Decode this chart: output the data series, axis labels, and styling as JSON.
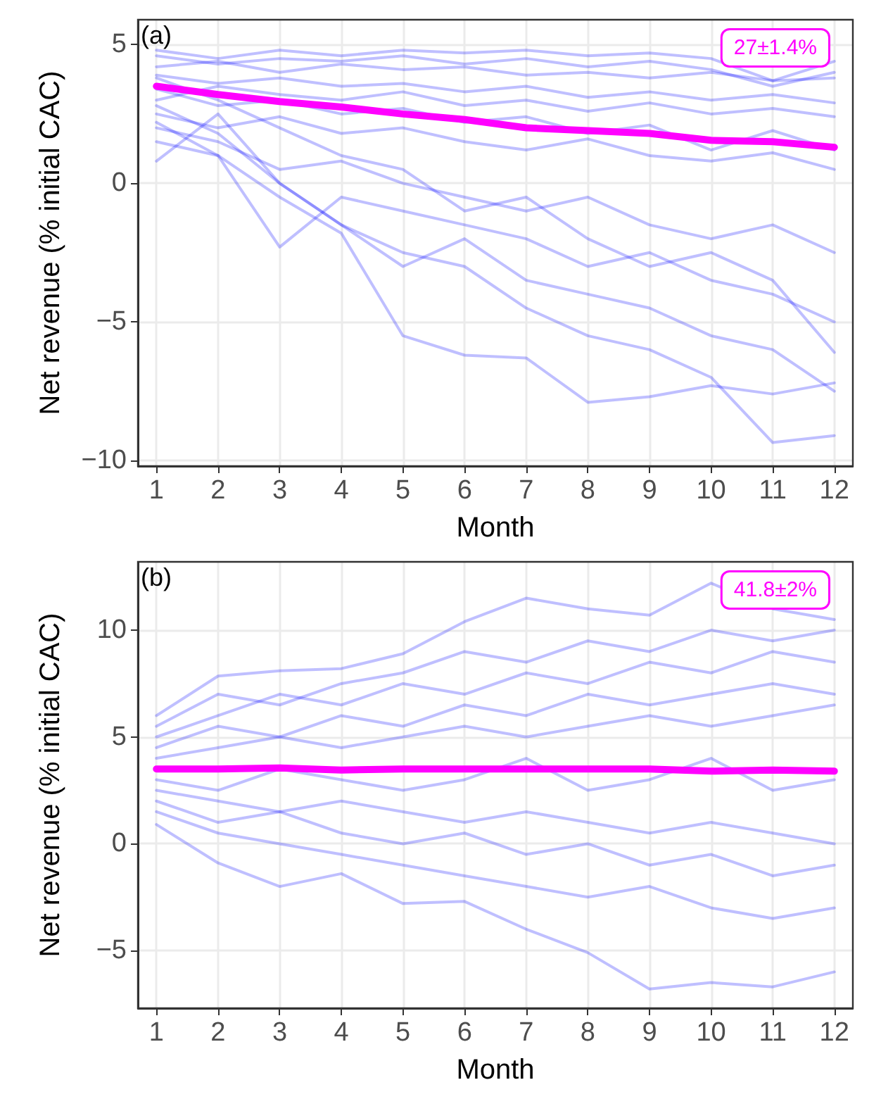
{
  "chart_data": [
    {
      "type": "line",
      "xlabel": "Month",
      "ylabel": "Net revenue (% initial CAC)",
      "annotations": [
        "(a)",
        "27±1.4%"
      ],
      "x": [
        1,
        2,
        3,
        4,
        5,
        6,
        7,
        8,
        9,
        10,
        11,
        12
      ],
      "xlim": [
        0.7,
        12.3
      ],
      "xticks": [
        1,
        2,
        3,
        4,
        5,
        6,
        7,
        8,
        9,
        10,
        11,
        12
      ],
      "ylim": [
        -10.2,
        5.9
      ],
      "yticks": [
        -10,
        -5,
        0,
        5
      ],
      "grid": true,
      "marker": "none",
      "line_style": "solid",
      "series": [
        {
          "color": "#0000ff",
          "values": [
            4.8,
            4.5,
            4.8,
            4.6,
            4.8,
            4.7,
            4.8,
            4.6,
            4.7,
            4.5,
            3.7,
            4.4
          ]
        },
        {
          "color": "#0000ff",
          "values": [
            4.6,
            4.3,
            4.5,
            4.4,
            4.6,
            4.3,
            4.5,
            4.2,
            4.4,
            4.1,
            3.5,
            4.0
          ]
        },
        {
          "color": "#0000ff",
          "values": [
            4.2,
            4.4,
            4.0,
            4.3,
            4.1,
            4.2,
            3.9,
            4.0,
            3.8,
            4.0,
            3.7,
            3.8
          ]
        },
        {
          "color": "#0000ff",
          "values": [
            3.9,
            3.6,
            3.8,
            3.5,
            3.6,
            3.3,
            3.5,
            3.1,
            3.3,
            3.0,
            3.2,
            2.9
          ]
        },
        {
          "color": "#0000ff",
          "values": [
            3.0,
            3.5,
            3.2,
            3.0,
            3.3,
            2.8,
            3.0,
            2.6,
            2.9,
            2.5,
            2.7,
            2.4
          ]
        },
        {
          "color": "#0000ff",
          "values": [
            3.4,
            2.8,
            3.0,
            2.5,
            2.7,
            2.2,
            2.4,
            1.8,
            2.1,
            1.2,
            1.9,
            1.2
          ]
        },
        {
          "color": "#0000ff",
          "values": [
            2.5,
            2.0,
            2.4,
            1.8,
            2.0,
            1.5,
            1.2,
            1.6,
            1.0,
            0.8,
            1.1,
            0.5
          ]
        },
        {
          "color": "#0000ff",
          "values": [
            2.0,
            1.5,
            0.5,
            0.8,
            0.0,
            -0.5,
            -1.0,
            -0.5,
            -1.5,
            -2.0,
            -1.5,
            -2.5
          ]
        },
        {
          "color": "#0000ff",
          "values": [
            3.8,
            3.0,
            2.0,
            1.0,
            0.5,
            -1.0,
            -0.5,
            -2.0,
            -3.0,
            -2.5,
            -3.5,
            -6.1
          ]
        },
        {
          "color": "#0000ff",
          "values": [
            1.5,
            1.0,
            -2.3,
            -0.5,
            -1.0,
            -1.5,
            -2.0,
            -3.0,
            -2.5,
            -3.5,
            -4.0,
            -5.0
          ]
        },
        {
          "color": "#0000ff",
          "values": [
            0.8,
            2.5,
            0.0,
            -1.5,
            -3.0,
            -2.0,
            -3.5,
            -4.0,
            -4.5,
            -5.5,
            -6.0,
            -7.5
          ]
        },
        {
          "color": "#0000ff",
          "values": [
            2.2,
            1.0,
            -0.5,
            -1.8,
            -5.5,
            -6.2,
            -6.3,
            -7.9,
            -7.7,
            -7.3,
            -7.6,
            -7.2
          ]
        },
        {
          "color": "#0000ff",
          "values": [
            2.8,
            1.8,
            0.0,
            -1.5,
            -2.5,
            -3.0,
            -4.5,
            -5.5,
            -6.0,
            -7.0,
            -9.35,
            -9.1
          ]
        },
        {
          "color": "#ff00ff",
          "values": [
            3.5,
            3.2,
            2.95,
            2.75,
            2.5,
            2.3,
            2.0,
            1.9,
            1.8,
            1.55,
            1.5,
            1.3
          ]
        }
      ]
    },
    {
      "type": "line",
      "xlabel": "Month",
      "ylabel": "Net revenue (% initial CAC)",
      "annotations": [
        "(b)",
        "41.8±2%"
      ],
      "x": [
        1,
        2,
        3,
        4,
        5,
        6,
        7,
        8,
        9,
        10,
        11,
        12
      ],
      "xlim": [
        0.7,
        12.3
      ],
      "xticks": [
        1,
        2,
        3,
        4,
        5,
        6,
        7,
        8,
        9,
        10,
        11,
        12
      ],
      "ylim": [
        -7.7,
        13.2
      ],
      "yticks": [
        -5,
        0,
        5,
        10
      ],
      "grid": true,
      "marker": "none",
      "line_style": "solid",
      "series": [
        {
          "color": "#0000ff",
          "values": [
            6.0,
            7.85,
            8.1,
            8.2,
            8.9,
            10.4,
            11.5,
            11.0,
            10.7,
            12.2,
            11.0,
            10.5
          ]
        },
        {
          "color": "#0000ff",
          "values": [
            5.5,
            7.0,
            6.5,
            7.5,
            8.0,
            9.0,
            8.5,
            9.5,
            9.0,
            10.0,
            9.5,
            10.0
          ]
        },
        {
          "color": "#0000ff",
          "values": [
            5.0,
            6.0,
            7.0,
            6.5,
            7.5,
            7.0,
            8.0,
            7.5,
            8.5,
            8.0,
            9.0,
            8.5
          ]
        },
        {
          "color": "#0000ff",
          "values": [
            4.5,
            5.5,
            5.0,
            6.0,
            5.5,
            6.5,
            6.0,
            7.0,
            6.5,
            7.0,
            7.5,
            7.0
          ]
        },
        {
          "color": "#0000ff",
          "values": [
            4.0,
            4.5,
            5.0,
            4.5,
            5.0,
            5.5,
            5.0,
            5.5,
            6.0,
            5.5,
            6.0,
            6.5
          ]
        },
        {
          "color": "#0000ff",
          "values": [
            3.0,
            2.5,
            3.5,
            3.0,
            2.5,
            3.0,
            4.0,
            2.5,
            3.0,
            4.0,
            2.5,
            3.0
          ]
        },
        {
          "color": "#0000ff",
          "values": [
            2.5,
            2.0,
            1.5,
            2.0,
            1.5,
            1.0,
            1.5,
            1.0,
            0.5,
            1.0,
            0.5,
            0.0
          ]
        },
        {
          "color": "#0000ff",
          "values": [
            2.0,
            1.0,
            1.5,
            0.5,
            0.0,
            0.5,
            -0.5,
            0.0,
            -1.0,
            -0.5,
            -1.5,
            -1.0
          ]
        },
        {
          "color": "#0000ff",
          "values": [
            1.5,
            0.5,
            0.0,
            -0.5,
            -1.0,
            -1.5,
            -2.0,
            -2.5,
            -2.0,
            -3.0,
            -3.5,
            -3.0
          ]
        },
        {
          "color": "#0000ff",
          "values": [
            0.9,
            -0.9,
            -2.0,
            -1.4,
            -2.8,
            -2.7,
            -4.0,
            -5.1,
            -6.8,
            -6.5,
            -6.7,
            -6.0
          ]
        },
        {
          "color": "#ff00ff",
          "values": [
            3.5,
            3.5,
            3.55,
            3.45,
            3.5,
            3.5,
            3.5,
            3.5,
            3.5,
            3.4,
            3.45,
            3.4
          ]
        }
      ]
    }
  ]
}
